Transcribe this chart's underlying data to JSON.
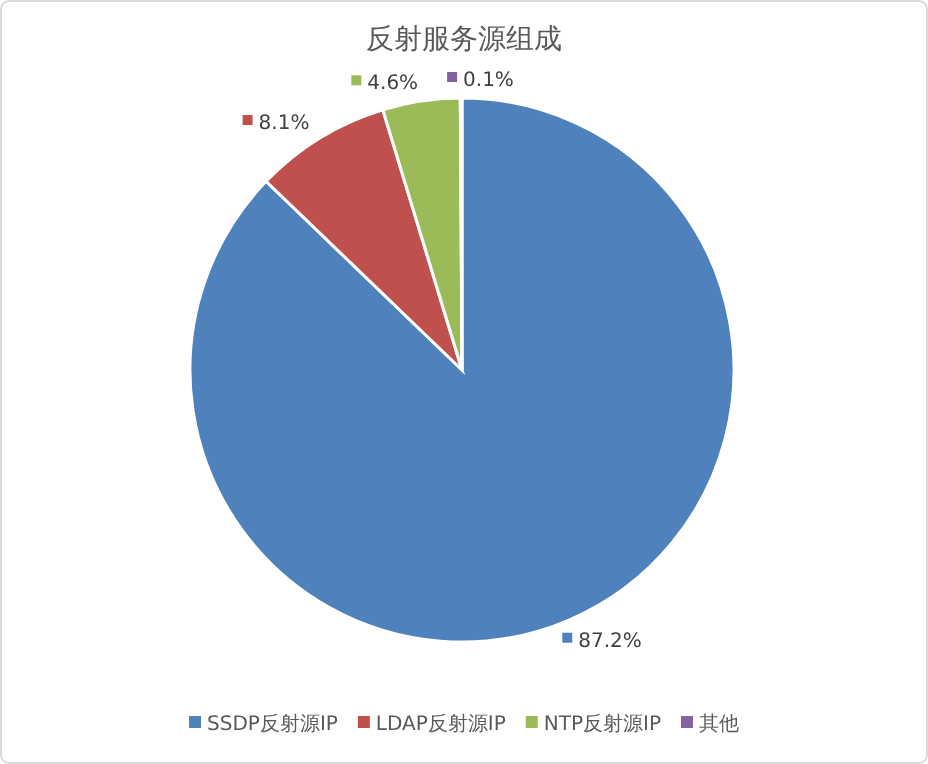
{
  "chart_data": {
    "type": "pie",
    "title": "反射服务源组成",
    "categories": [
      "SSDP反射源IP",
      "LDAP反射源IP",
      "NTP反射源IP",
      "其他"
    ],
    "values": [
      87.2,
      8.1,
      4.6,
      0.1
    ],
    "value_labels": [
      "87.2%",
      "8.1%",
      "4.6%",
      "0.1%"
    ],
    "colors": [
      "#4f81bd",
      "#c0504d",
      "#9bbb59",
      "#8064a2"
    ],
    "legend": "bottom"
  }
}
